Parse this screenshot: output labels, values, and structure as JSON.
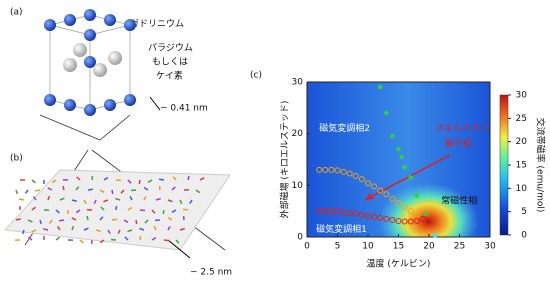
{
  "labels": {
    "panel_a": "(a)",
    "gadolinium": "ガドリニウム",
    "pd_lines": [
      "パラジウム",
      "もしくは",
      "ケイ素"
    ],
    "lattice": "~ 0.41 nm",
    "panel_b": "(b)",
    "skyrmion_size": "~ 2.5 nm",
    "panel_c": "(c)"
  },
  "chart_data": {
    "type": "scatter",
    "xlabel": "温度 (ケルビン)",
    "ylabel": "外部磁場 (キロエルステッド)",
    "xlim": [
      0,
      30
    ],
    "xticks": [
      0,
      5,
      10,
      15,
      20,
      25,
      30
    ],
    "ylim": [
      0,
      30
    ],
    "yticks": [
      0,
      10,
      20,
      30
    ],
    "colorbar": {
      "label": "交流帯磁率 (emu/mol)",
      "lim": [
        0,
        30
      ],
      "ticks": [
        0,
        5,
        10,
        15,
        20,
        25,
        30
      ]
    },
    "annotations": {
      "phase2": "磁気変調相2",
      "phase1": "磁気変調相1",
      "para": "常磁性相",
      "skx": [
        "スキルミオン",
        "格子相"
      ]
    },
    "series": [
      {
        "marker": "circle",
        "color": "#f0a020",
        "x": [
          2,
          3,
          4,
          5,
          6,
          7,
          8,
          9,
          10,
          11,
          12,
          13,
          14,
          15,
          16,
          17,
          18
        ],
        "y": [
          13,
          13,
          13,
          12.9,
          12.6,
          12.3,
          11.8,
          11.2,
          10.4,
          9.8,
          9,
          8.3,
          7.4,
          6.6,
          5.8,
          5,
          4.2
        ]
      },
      {
        "marker": "circle",
        "color": "#e02020",
        "x": [
          2,
          3,
          4,
          5,
          6,
          7,
          8,
          9,
          10,
          11,
          12,
          13,
          14,
          15,
          16,
          17,
          18,
          19
        ],
        "y": [
          5,
          5,
          5,
          4.9,
          4.8,
          4.6,
          4.5,
          4.3,
          4.1,
          3.9,
          3.7,
          3.5,
          3.3,
          3.1,
          3,
          3,
          3.1,
          3.5
        ]
      },
      {
        "marker": "dot",
        "color": "#30d040",
        "x": [
          12,
          13,
          14,
          15,
          15.5,
          16,
          17,
          18,
          19.5
        ],
        "y": [
          29,
          24,
          19.5,
          17,
          15.5,
          13.5,
          11.5,
          8,
          4.5
        ]
      },
      {
        "marker": "dot",
        "color": "#40e0ff",
        "x": [
          21
        ],
        "y": [
          0.3
        ]
      }
    ]
  }
}
